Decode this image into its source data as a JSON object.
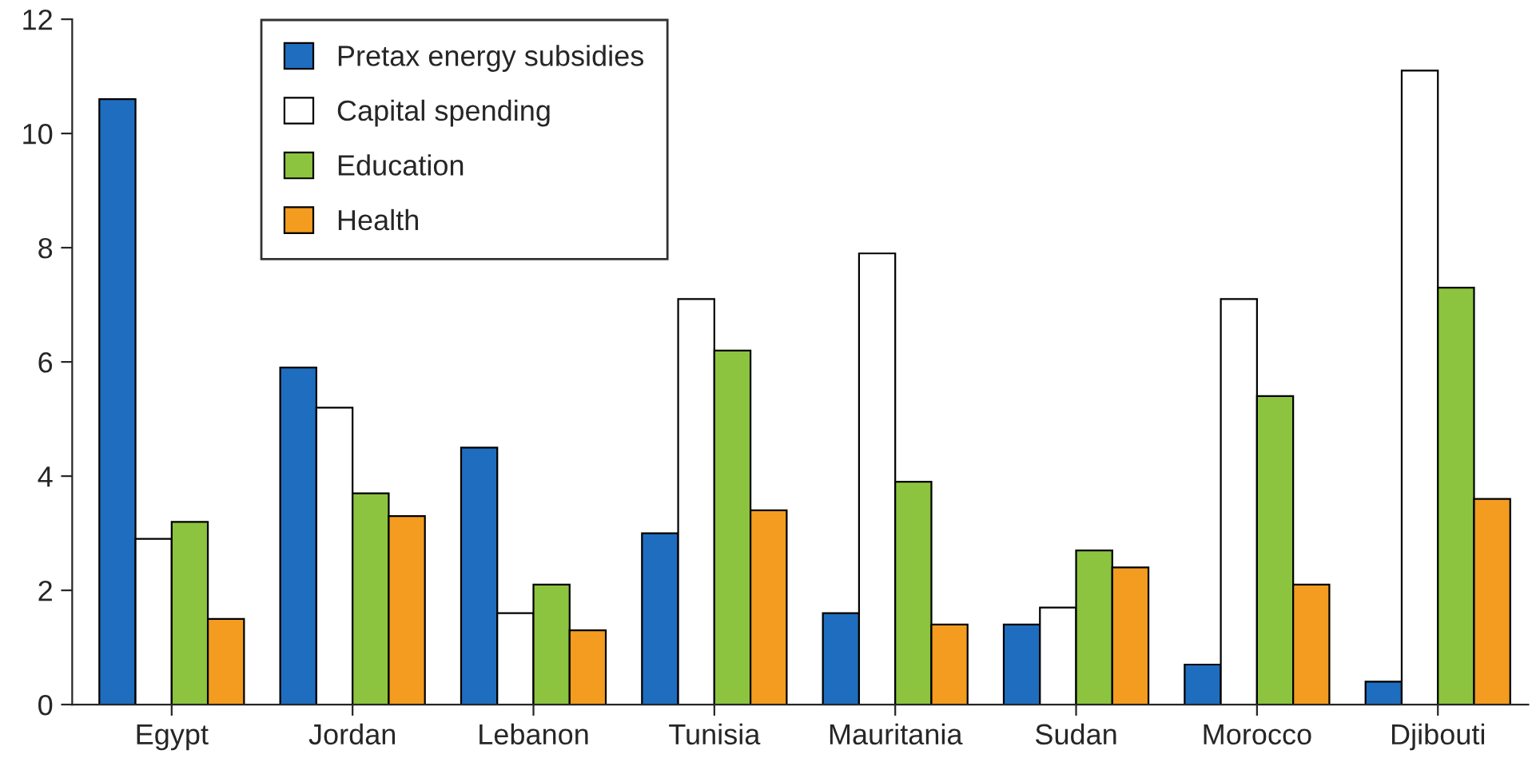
{
  "chart_data": {
    "type": "bar",
    "categories": [
      "Egypt",
      "Jordan",
      "Lebanon",
      "Tunisia",
      "Mauritania",
      "Sudan",
      "Morocco",
      "Djibouti"
    ],
    "series": [
      {
        "name": "Pretax energy subsidies",
        "color": "#1f6dbf",
        "values": [
          10.6,
          5.9,
          4.5,
          3.0,
          1.6,
          1.4,
          0.7,
          0.4
        ]
      },
      {
        "name": "Capital spending",
        "color": "#ffffff",
        "values": [
          2.9,
          5.2,
          1.6,
          7.1,
          7.9,
          1.7,
          7.1,
          11.1
        ]
      },
      {
        "name": "Education",
        "color": "#8cc43f",
        "values": [
          3.2,
          3.7,
          2.1,
          6.2,
          3.9,
          2.7,
          5.4,
          7.3
        ]
      },
      {
        "name": "Health",
        "color": "#f39c1f",
        "values": [
          1.5,
          3.3,
          1.3,
          3.4,
          1.4,
          2.4,
          2.1,
          3.6
        ]
      }
    ],
    "ylim": [
      0,
      12
    ],
    "yticks": [
      0,
      2,
      4,
      6,
      8,
      10,
      12
    ],
    "grid": false,
    "legend": "top left"
  }
}
